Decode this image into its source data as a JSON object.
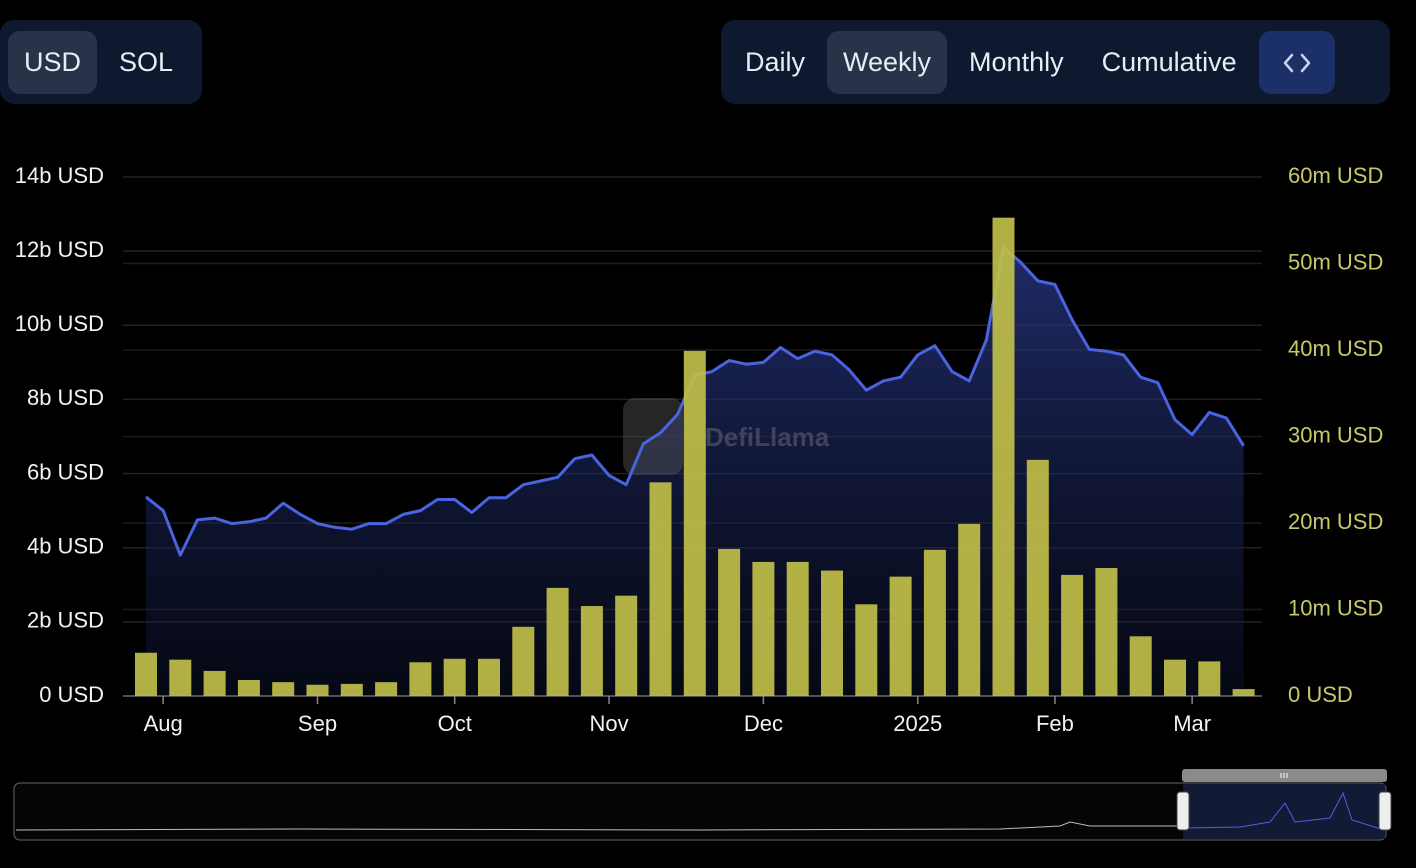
{
  "ui": {
    "currency_toggle": [
      "USD",
      "SOL"
    ],
    "period_toggle": [
      "Daily",
      "Weekly",
      "Monthly",
      "Cumulative"
    ]
  },
  "chart_data": {
    "type": "bar",
    "watermark": "DefiLlama",
    "categories": [
      null,
      "Aug",
      null,
      null,
      null,
      null,
      null,
      null,
      null,
      null,
      "Sep",
      null,
      null,
      null,
      null,
      null,
      null,
      null,
      "Oct",
      null,
      null,
      null,
      null,
      null,
      null,
      null,
      null,
      "Nov",
      null,
      null,
      null,
      null,
      null,
      null,
      null,
      null,
      "Dec",
      null,
      null,
      null,
      null,
      null,
      null,
      null,
      null,
      "2025",
      null,
      null,
      null,
      null,
      null,
      null,
      null,
      "Feb",
      null,
      null,
      null,
      null,
      null,
      null,
      null,
      "Mar",
      null,
      null,
      null
    ],
    "series": [
      {
        "type": "line",
        "color": "#4a63e0",
        "values": [
          5.37,
          5.0,
          3.8,
          4.75,
          4.8,
          4.65,
          4.7,
          4.8,
          5.2,
          4.9,
          4.65,
          4.55,
          4.5,
          4.65,
          4.65,
          4.9,
          5.0,
          5.3,
          5.3,
          4.95,
          5.35,
          5.35,
          5.7,
          5.8,
          5.9,
          6.4,
          6.5,
          5.95,
          5.7,
          6.8,
          7.1,
          7.6,
          8.65,
          8.75,
          9.05,
          8.95,
          9.0,
          9.4,
          9.1,
          9.3,
          9.2,
          8.8,
          8.25,
          8.5,
          8.6,
          9.2,
          9.45,
          8.75,
          8.5,
          9.6,
          12.1,
          11.7,
          11.2,
          11.1,
          10.15,
          9.35,
          9.3,
          9.2,
          8.6,
          8.45,
          7.45,
          7.05,
          7.65,
          7.5,
          6.75
        ]
      },
      {
        "type": "bar",
        "axis": "y2",
        "color": "#c0bf4a",
        "values": [
          5.0,
          null,
          4.2,
          null,
          2.9,
          null,
          1.85,
          null,
          1.6,
          null,
          1.3,
          null,
          1.4,
          null,
          1.6,
          null,
          3.9,
          null,
          4.3,
          null,
          4.3,
          null,
          8.0,
          null,
          12.5,
          null,
          10.4,
          null,
          11.6,
          null,
          24.7,
          null,
          39.9,
          null,
          17.0,
          null,
          15.5,
          null,
          15.5,
          null,
          14.5,
          null,
          10.6,
          null,
          13.8,
          null,
          16.9,
          null,
          19.9,
          null,
          55.3,
          null,
          27.3,
          null,
          14.0,
          null,
          14.8,
          null,
          6.9,
          null,
          4.2,
          null,
          4.0,
          null,
          0.8
        ]
      }
    ],
    "ylim": [
      0,
      14
    ],
    "yticks": [
      {
        "value": 0,
        "label": "0 USD"
      },
      {
        "value": 2,
        "label": "2b USD"
      },
      {
        "value": 4,
        "label": "4b USD"
      },
      {
        "value": 6,
        "label": "6b USD"
      },
      {
        "value": 8,
        "label": "8b USD"
      },
      {
        "value": 10,
        "label": "10b USD"
      },
      {
        "value": 12,
        "label": "12b USD"
      },
      {
        "value": 14,
        "label": "14b USD"
      }
    ],
    "y2lim": [
      0,
      60
    ],
    "y2ticks": [
      {
        "value": 0,
        "label": "0 USD"
      },
      {
        "value": 10,
        "label": "10m USD"
      },
      {
        "value": 20,
        "label": "20m USD"
      },
      {
        "value": 30,
        "label": "30m USD"
      },
      {
        "value": 40,
        "label": "40m USD"
      },
      {
        "value": 50,
        "label": "50m USD"
      },
      {
        "value": 60,
        "label": "60m USD"
      }
    ],
    "grid": true
  }
}
